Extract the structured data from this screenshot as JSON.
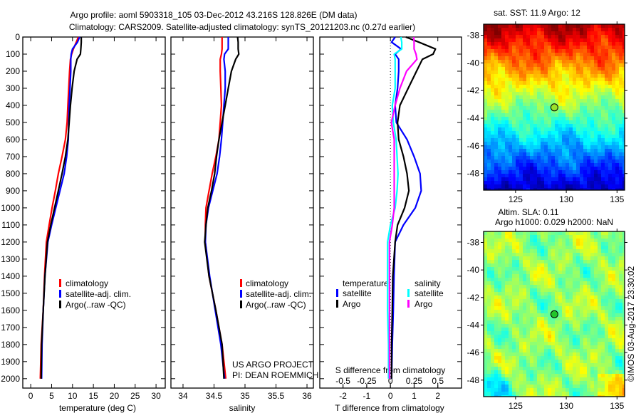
{
  "header": {
    "title_line1": "Argo profile: aoml 5903318_105 03-Dec-2012 43.216S 128.826E (DM data)",
    "title_line2": "Climatology: CARS2009. Satellite-adjusted climatology: synTS_20121203.nc (0.27d earlier)"
  },
  "credits": {
    "project": "US ARGO PROJECT",
    "pi": "PI: DEAN ROEMMICH",
    "timestamp": "©IMOS 03-Aug-2017 23:30:02"
  },
  "colors": {
    "climatology": "#ff0000",
    "satellite": "#0000ff",
    "argo": "#000000",
    "s_satellite": "#00ffff",
    "s_argo": "#ff00ff"
  },
  "chart_data": [
    {
      "type": "line",
      "panel": "temperature",
      "xlabel": "temperature (deg C)",
      "ylabel": "",
      "xlim": [
        -1.9,
        32.2
      ],
      "ylim": [
        2055,
        0
      ],
      "xticks": [
        0,
        5,
        10,
        15,
        20,
        25,
        30
      ],
      "yticks": [
        0,
        100,
        200,
        300,
        400,
        500,
        600,
        700,
        800,
        900,
        1000,
        1100,
        1200,
        1300,
        1400,
        1500,
        1600,
        1700,
        1800,
        1900,
        2000
      ],
      "depth": [
        0,
        30,
        70,
        100,
        130,
        200,
        300,
        400,
        500,
        600,
        700,
        800,
        900,
        1000,
        1100,
        1200,
        1400,
        1600,
        1800,
        2000
      ],
      "legend": [
        "climatology",
        "satellite-adj. clim.",
        "Argo(..raw -QC)"
      ],
      "series": [
        {
          "name": "climatology",
          "color": "#ff0000",
          "values": [
            11.4,
            10.9,
            10.2,
            9.8,
            9.5,
            9.3,
            9.1,
            8.9,
            8.7,
            8.3,
            7.5,
            6.6,
            5.9,
            5.1,
            4.4,
            3.75,
            3.3,
            3.0,
            2.5,
            2.3
          ]
        },
        {
          "name": "satellite-adj. clim.",
          "color": "#0000ff",
          "values": [
            11.7,
            11.2,
            10.0,
            9.7,
            9.6,
            9.6,
            9.4,
            9.2,
            9.1,
            9.0,
            8.6,
            8.0,
            7.0,
            6.0,
            5.0,
            4.1,
            3.4,
            3.0,
            2.7,
            2.6
          ]
        },
        {
          "name": "Argo(..raw -QC)",
          "color": "#000000",
          "values": [
            12.1,
            12.1,
            12.0,
            11.9,
            11.1,
            10.4,
            9.9,
            9.5,
            9.2,
            8.9,
            8.3,
            7.5,
            6.6,
            5.7,
            4.8,
            4.0,
            3.4,
            3.0,
            2.6,
            2.5
          ]
        }
      ]
    },
    {
      "type": "line",
      "panel": "salinity",
      "xlabel": "salinity",
      "xlim": [
        33.805,
        36.103
      ],
      "ylim": [
        2055,
        0
      ],
      "xticks": [
        34,
        34.5,
        35,
        35.5,
        36
      ],
      "depth": [
        0,
        30,
        70,
        100,
        130,
        200,
        300,
        400,
        500,
        600,
        700,
        800,
        900,
        1000,
        1100,
        1200,
        1400,
        1600,
        1800,
        2000
      ],
      "legend": [
        "climatology",
        "satellite-adj. clim.",
        "Argo(..raw -QC)"
      ],
      "series": [
        {
          "name": "climatology",
          "color": "#ff0000",
          "values": [
            34.63,
            34.63,
            34.63,
            34.62,
            34.6,
            34.6,
            34.61,
            34.62,
            34.6,
            34.58,
            34.53,
            34.47,
            34.42,
            34.37,
            34.36,
            34.36,
            34.42,
            34.53,
            34.63,
            34.69
          ]
        },
        {
          "name": "satellite-adj. clim.",
          "color": "#0000ff",
          "values": [
            34.73,
            34.73,
            34.73,
            34.67,
            34.66,
            34.68,
            34.68,
            34.66,
            34.64,
            34.62,
            34.59,
            34.55,
            34.48,
            34.41,
            34.37,
            34.36,
            34.43,
            34.52,
            34.61,
            34.67
          ]
        },
        {
          "name": "Argo(..raw -QC)",
          "color": "#000000",
          "values": [
            34.88,
            34.89,
            34.89,
            34.9,
            34.85,
            34.78,
            34.73,
            34.68,
            34.63,
            34.58,
            34.54,
            34.51,
            34.46,
            34.4,
            34.37,
            34.35,
            34.42,
            34.53,
            34.63,
            34.66
          ]
        }
      ]
    },
    {
      "type": "line",
      "panel": "difference",
      "xlabel": "T difference from climatology",
      "xlabel2": "S difference from climatology",
      "xlim": [
        -2.98,
        3.0
      ],
      "s_per_t": 0.25,
      "ylim": [
        2055,
        0
      ],
      "xticks": [
        -2,
        -1,
        0,
        1,
        2
      ],
      "xticks2": [
        -0.5,
        -0.25,
        0,
        0.25,
        0.5
      ],
      "depth": [
        0,
        30,
        70,
        100,
        130,
        200,
        300,
        400,
        500,
        600,
        700,
        800,
        900,
        1000,
        1100,
        1200,
        1400,
        1600,
        1800,
        2000
      ],
      "legend": {
        "t_header": "temperature",
        "s_header": "salinity",
        "satellite": "satellite",
        "argo": "Argo"
      },
      "series": [
        {
          "name": "T satellite",
          "axis": "T",
          "color": "#0000ff",
          "values": [
            0.2,
            0.05,
            0.45,
            0.2,
            0.35,
            0.35,
            0.3,
            0.2,
            0.25,
            0.7,
            1.0,
            1.25,
            1.3,
            1.05,
            0.55,
            0.2,
            0.15,
            0.12,
            0.08,
            0.05
          ]
        },
        {
          "name": "T Argo",
          "axis": "T",
          "color": "#000000",
          "values": [
            0.65,
            1.2,
            1.9,
            1.8,
            1.35,
            1.1,
            0.75,
            0.4,
            0.3,
            0.35,
            0.55,
            0.7,
            0.78,
            0.6,
            0.3,
            0.2,
            0.1,
            0.08,
            0.05,
            0.05
          ]
        },
        {
          "name": "S satellite",
          "axis": "S",
          "color": "#00ffff",
          "values": [
            0.11,
            0.12,
            0.12,
            0.04,
            0.05,
            0.05,
            0.05,
            0.02,
            0.03,
            0.06,
            0.07,
            0.08,
            0.07,
            0.05,
            0,
            -0.03,
            -0.03,
            -0.03,
            -0.02,
            -0.02
          ]
        },
        {
          "name": "S Argo",
          "axis": "S",
          "color": "#ff00ff",
          "values": [
            0.245,
            0.25,
            0.25,
            0.27,
            0.28,
            0.17,
            0.1,
            0.05,
            0.01,
            0.04,
            0.04,
            0.04,
            0.04,
            0.04,
            0.02,
            -0.01,
            -0.01,
            -0.01,
            -0.01,
            -0.01
          ]
        }
      ]
    },
    {
      "type": "heatmap",
      "panel": "sst-map",
      "title": "sat. SST: 11.9 Argo: 12",
      "xlim": [
        121.85,
        135.75
      ],
      "ylim": [
        -49.2,
        -37.2
      ],
      "xticks": [
        125,
        130,
        135
      ],
      "yticks": [
        -38,
        -40,
        -42,
        -44,
        -46,
        -48
      ],
      "marker": {
        "lon": 128.826,
        "lat": -43.216,
        "fill": "#9be02a"
      }
    },
    {
      "type": "heatmap",
      "panel": "sla-map",
      "title_line1": "Altim. SLA: 0.11",
      "title_line2": "Argo h1000: 0.029 h2000: NaN",
      "xlim": [
        121.85,
        135.75
      ],
      "ylim": [
        -49.2,
        -37.2
      ],
      "xticks": [
        125,
        130,
        135
      ],
      "yticks": [
        -38,
        -40,
        -42,
        -44,
        -46,
        -48
      ],
      "marker": {
        "lon": 128.826,
        "lat": -43.216,
        "fill": "#22c52a"
      }
    }
  ]
}
